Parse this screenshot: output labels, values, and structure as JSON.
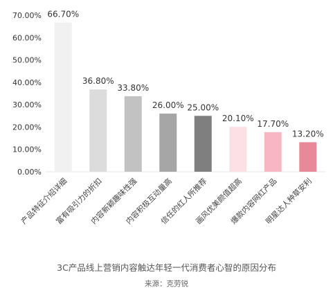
{
  "chart_data": {
    "type": "bar",
    "title": "3C产品线上营销内容触达年轻一代消费者心智的原因分布",
    "source": "来源：克劳锐",
    "categories": [
      "产品特征介绍详细",
      "富有吸引力的折扣",
      "内容新颖趣味性强",
      "内容积极互动量高",
      "信任的红人所推荐",
      "画风优美颜值超高",
      "爆款内容网红产品",
      "明星达人种草安利"
    ],
    "values": [
      66.7,
      36.8,
      33.8,
      26.0,
      25.0,
      20.1,
      17.7,
      13.2
    ],
    "data_labels": [
      "66.70%",
      "36.80%",
      "33.80%",
      "26.00%",
      "25.00%",
      "20.10%",
      "17.70%",
      "13.20%"
    ],
    "bar_colors": [
      "#f1f1f1",
      "#dcdcdc",
      "#c2c2c2",
      "#a6a6a6",
      "#7f7f7f",
      "#fde0e6",
      "#f6b7c2",
      "#e8899a"
    ],
    "ylim": [
      0,
      70
    ],
    "yticks": [
      "0.00%",
      "10.00%",
      "20.00%",
      "30.00%",
      "40.00%",
      "50.00%",
      "60.00%",
      "70.00%"
    ],
    "xlabel": "",
    "ylabel": "",
    "grid": false,
    "legend": "none"
  }
}
